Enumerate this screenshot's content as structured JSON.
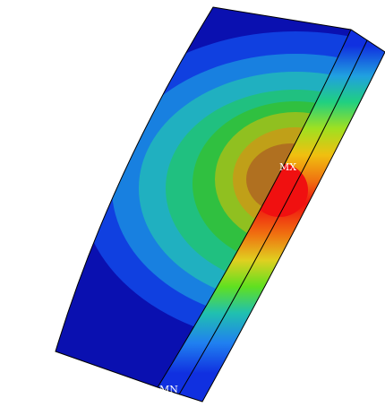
{
  "labels": {
    "max": "MX",
    "min": "MN"
  }
}
